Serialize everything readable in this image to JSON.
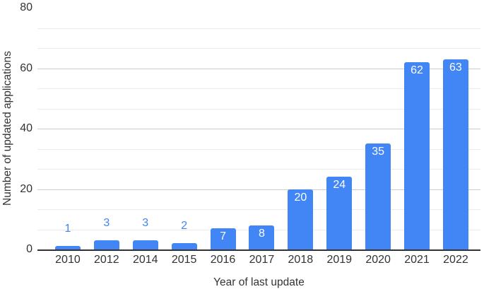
{
  "chart_data": {
    "type": "bar",
    "title": "",
    "xlabel": "Year of last update",
    "ylabel": "Number of updated applications",
    "categories": [
      "2010",
      "2012",
      "2014",
      "2015",
      "2016",
      "2017",
      "2018",
      "2019",
      "2020",
      "2021",
      "2022"
    ],
    "values": [
      1,
      3,
      3,
      2,
      7,
      8,
      20,
      24,
      35,
      62,
      63
    ],
    "data_labels": [
      "1",
      "3",
      "3",
      "2",
      "7",
      "8",
      "20",
      "24",
      "35",
      "62",
      "63"
    ],
    "ylim": [
      0,
      80
    ],
    "yticks": [
      0,
      20,
      40,
      60,
      80
    ],
    "minor_gridlines_per_major_gap": 2,
    "grid": "horizontal major and minor, no vertical",
    "legend": "none",
    "colors": {
      "bar": "#4285F4",
      "label_inside": "#ffffff",
      "label_outside": "#4285F4",
      "grid_major": "#cccccc",
      "grid_minor": "#ebebeb",
      "axis_line": "#333333",
      "text": "#333333"
    }
  }
}
